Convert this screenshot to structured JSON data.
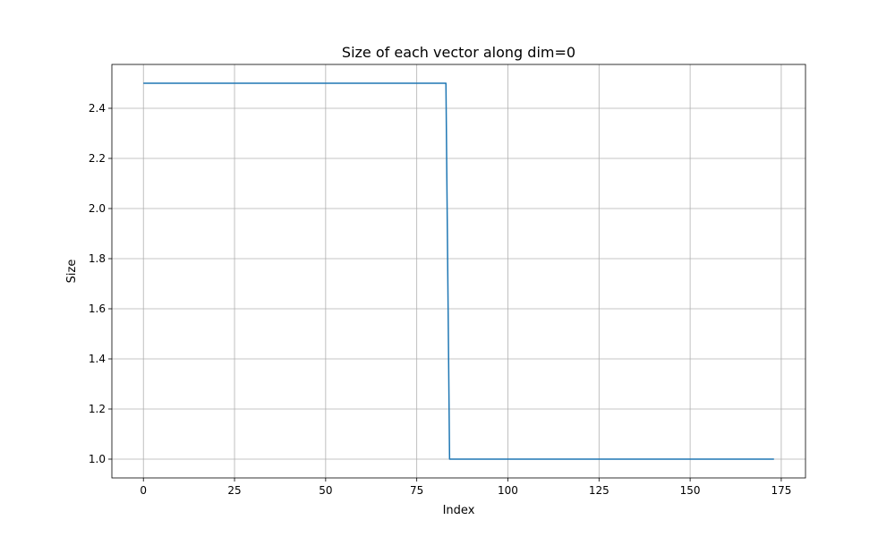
{
  "chart_data": {
    "type": "line",
    "title": "Size of each vector along dim=0",
    "xlabel": "Index",
    "ylabel": "Size",
    "xlim": [
      -8.65,
      181.65
    ],
    "ylim": [
      0.925,
      2.575
    ],
    "xticks": [
      0,
      25,
      50,
      75,
      100,
      125,
      150,
      175
    ],
    "yticks": [
      1.0,
      1.2,
      1.4,
      1.6,
      1.8,
      2.0,
      2.2,
      2.4
    ],
    "grid": true,
    "colors": {
      "series": "#1f77b4"
    },
    "series": [
      {
        "x": [
          0,
          83,
          84,
          173
        ],
        "y": [
          2.5,
          2.5,
          1.0,
          1.0
        ]
      }
    ]
  }
}
